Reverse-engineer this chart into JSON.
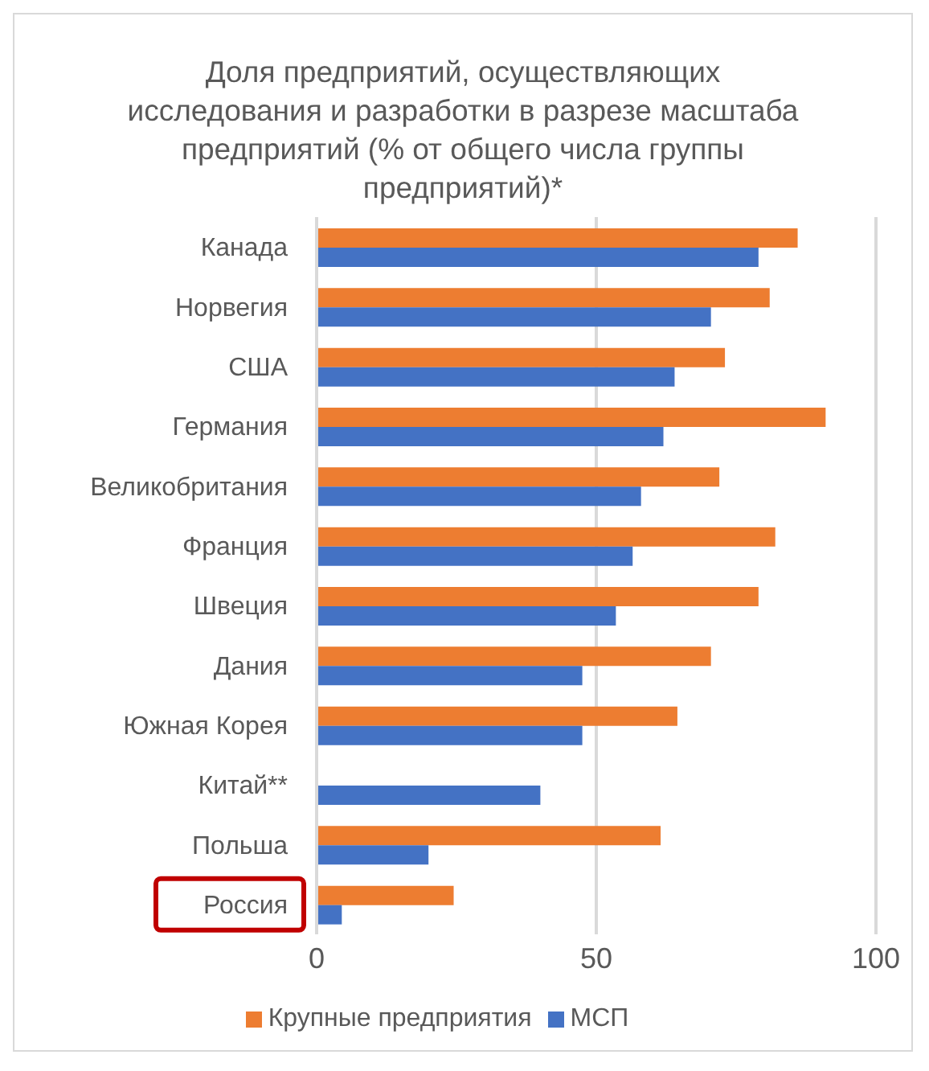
{
  "chart_data": {
    "type": "bar",
    "orientation": "horizontal",
    "title": "Доля предприятий, осуществляющих исследования и разработки в разрезе масштаба предприятий (% от общего числа группы предприятий)*",
    "categories": [
      "Канада",
      "Норвегия",
      "США",
      "Германия",
      "Великобритания",
      "Франция",
      "Швеция",
      "Дания",
      "Южная Корея",
      "Китай**",
      "Польша",
      "Россия"
    ],
    "series": [
      {
        "name": "Крупные предприятия",
        "color": "#ed7d31",
        "values": [
          86,
          81,
          73,
          91,
          72,
          82,
          79,
          70.5,
          64.5,
          null,
          61.5,
          24.5
        ]
      },
      {
        "name": "МСП",
        "color": "#4472c4",
        "values": [
          79,
          70.5,
          64,
          62,
          58,
          56.5,
          53.5,
          47.5,
          47.5,
          40,
          20,
          4.5
        ]
      }
    ],
    "xlim": [
      0,
      100
    ],
    "xticks": [
      0,
      50,
      100
    ],
    "grid": "x",
    "legend": "bottom"
  }
}
